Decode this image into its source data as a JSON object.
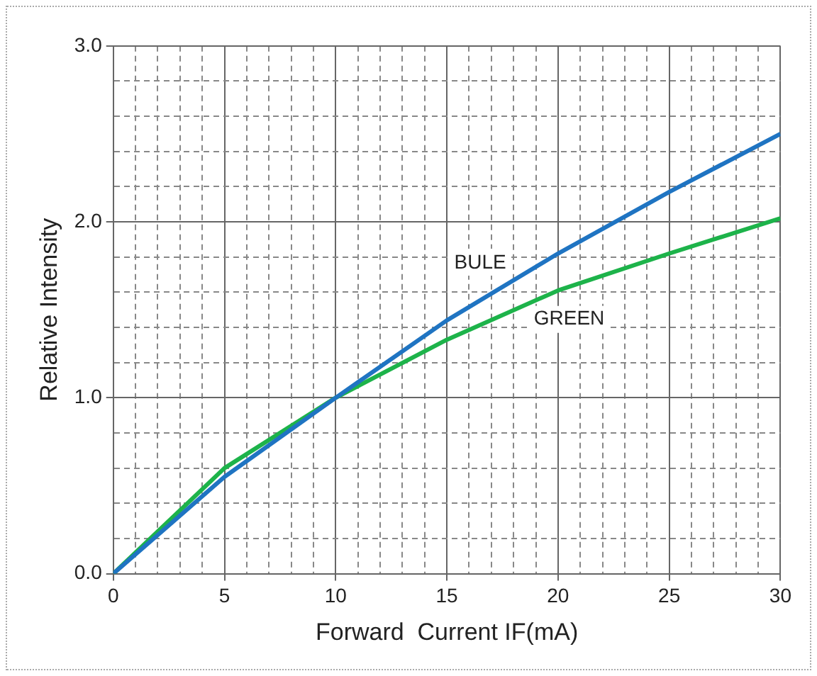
{
  "chart_data": {
    "type": "line",
    "xlabel": "Forward  Current IF(mA)",
    "ylabel": "Relative Intensity",
    "xlim": [
      0,
      30
    ],
    "xticks": [
      0,
      {
        "value": 1,
        "label": null
      },
      {
        "value": 2,
        "label": null
      },
      {
        "value": 3,
        "label": null
      },
      {
        "value": 4,
        "label": null
      },
      5,
      {
        "value": 6,
        "label": null
      },
      {
        "value": 7,
        "label": null
      },
      {
        "value": 8,
        "label": null
      },
      {
        "value": 9,
        "label": null
      },
      10,
      {
        "value": 11,
        "label": null
      },
      {
        "value": 12,
        "label": null
      },
      {
        "value": 13,
        "label": null
      },
      {
        "value": 14,
        "label": null
      },
      15,
      {
        "value": 16,
        "label": null
      },
      {
        "value": 17,
        "label": null
      },
      {
        "value": 18,
        "label": null
      },
      {
        "value": 19,
        "label": null
      },
      20,
      {
        "value": 21,
        "label": null
      },
      {
        "value": 22,
        "label": null
      },
      {
        "value": 23,
        "label": null
      },
      {
        "value": 24,
        "label": null
      },
      25,
      {
        "value": 26,
        "label": null
      },
      {
        "value": 27,
        "label": null
      },
      {
        "value": 28,
        "label": null
      },
      {
        "value": 29,
        "label": null
      },
      30
    ],
    "ylim": [
      0,
      3
    ],
    "yticks": [
      {
        "value": 0,
        "label": "0.0"
      },
      {
        "value": 0.2,
        "label": null
      },
      {
        "value": 0.4,
        "label": null
      },
      {
        "value": 0.6,
        "label": null
      },
      {
        "value": 0.8,
        "label": null
      },
      {
        "value": 1,
        "label": "1.0"
      },
      {
        "value": 1.2,
        "label": null
      },
      {
        "value": 1.4,
        "label": null
      },
      {
        "value": 1.6,
        "label": null
      },
      {
        "value": 1.8,
        "label": null
      },
      {
        "value": 2,
        "label": "2.0"
      },
      {
        "value": 2.2,
        "label": null
      },
      {
        "value": 2.4,
        "label": null
      },
      {
        "value": 2.6,
        "label": null
      },
      {
        "value": 2.8,
        "label": null
      },
      {
        "value": 3,
        "label": "3.0"
      }
    ],
    "x": [
      0,
      5,
      10,
      15,
      20,
      25,
      30
    ],
    "grid": true,
    "marker": "none",
    "line_style": "solid",
    "series": [
      {
        "name": "BULE",
        "color": "#1f74c2",
        "values": [
          0,
          0.55,
          1.0,
          1.44,
          1.82,
          2.17,
          2.5
        ]
      },
      {
        "name": "GREEN",
        "color": "#1db34a",
        "values": [
          0,
          0.6,
          1.0,
          1.33,
          1.61,
          1.82,
          2.02
        ]
      }
    ]
  }
}
